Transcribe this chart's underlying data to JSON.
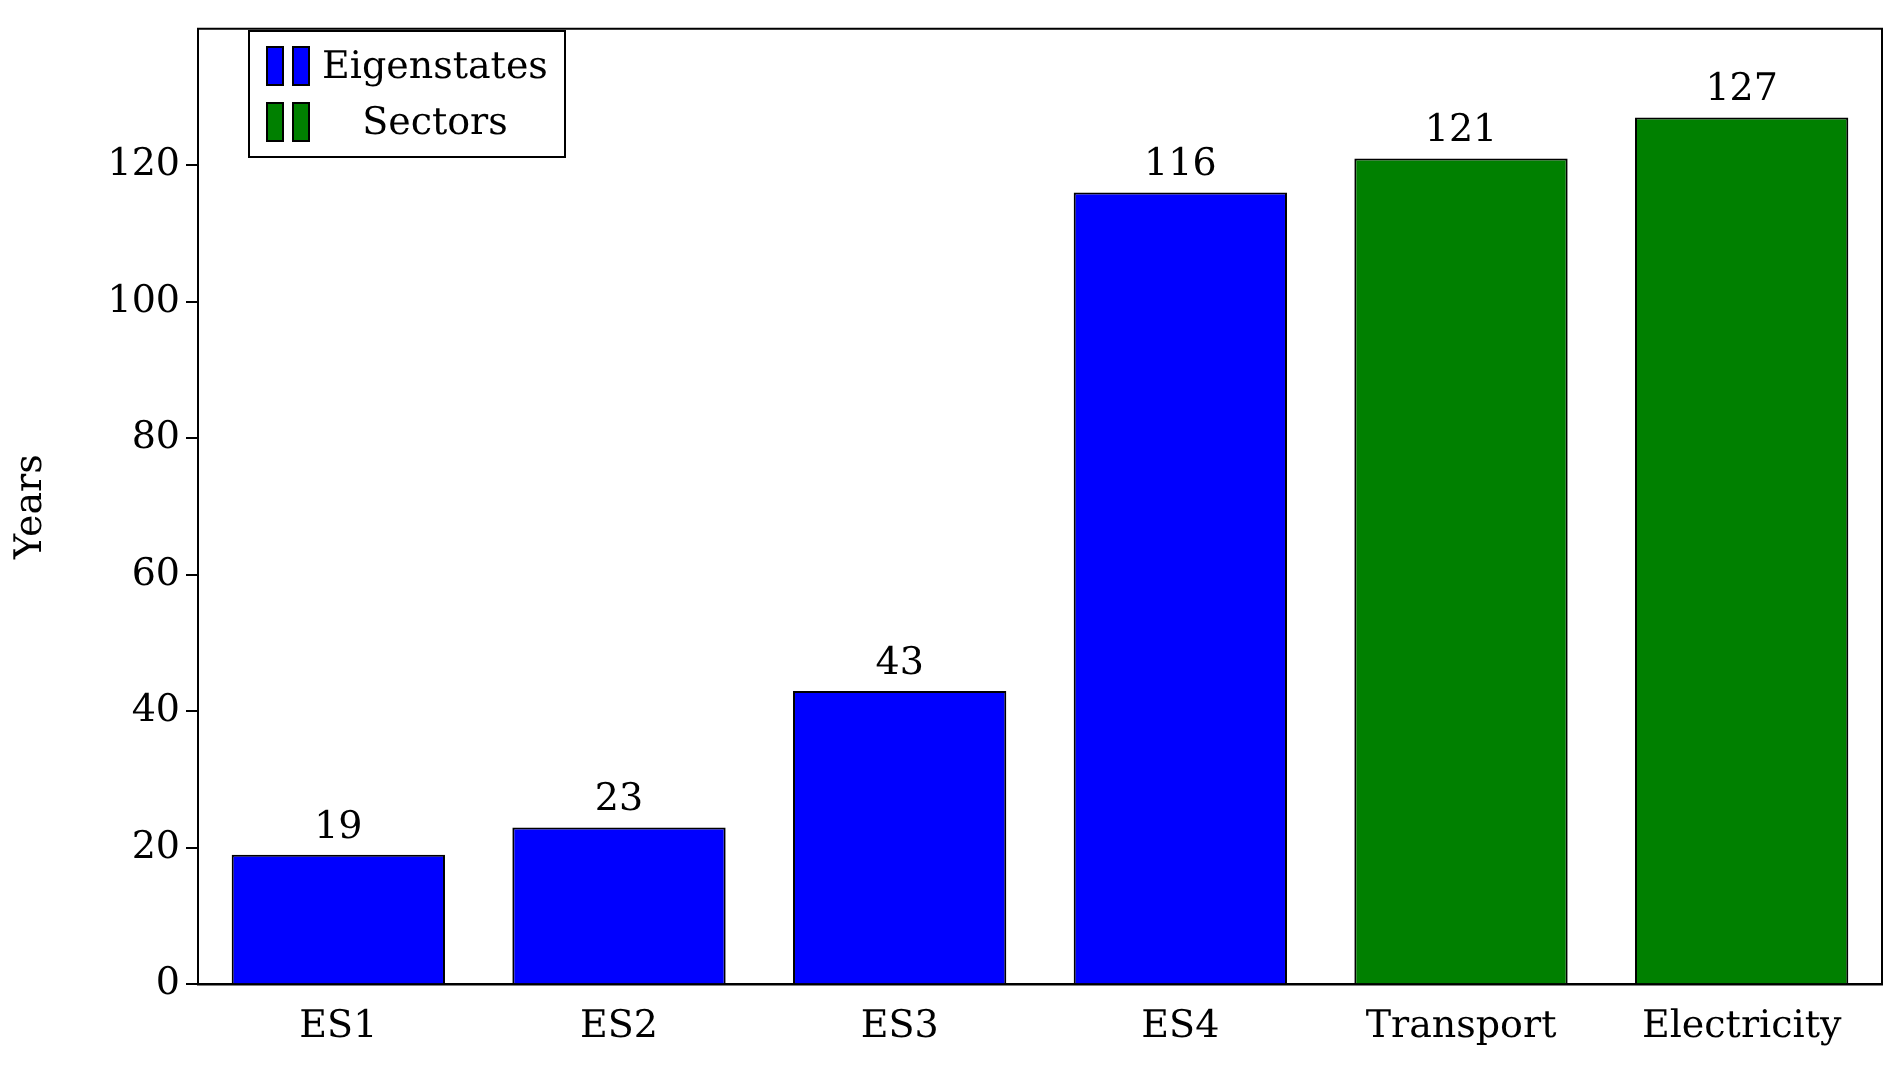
{
  "chart_data": {
    "type": "bar",
    "ylabel": "Years",
    "categories": [
      "ES1",
      "ES2",
      "ES3",
      "ES4",
      "Transport",
      "Electricity"
    ],
    "series": [
      {
        "name": "Eigenstates",
        "color": "#0000ff",
        "values": [
          19,
          23,
          43,
          116,
          null,
          null
        ]
      },
      {
        "name": "Sectors",
        "color": "#008000",
        "values": [
          null,
          null,
          null,
          null,
          121,
          127
        ]
      }
    ],
    "ylim": [
      0,
      140
    ],
    "yticks": [
      0,
      20,
      40,
      60,
      80,
      100,
      120
    ],
    "grid": false,
    "legend": "top left",
    "data_labels": true
  }
}
